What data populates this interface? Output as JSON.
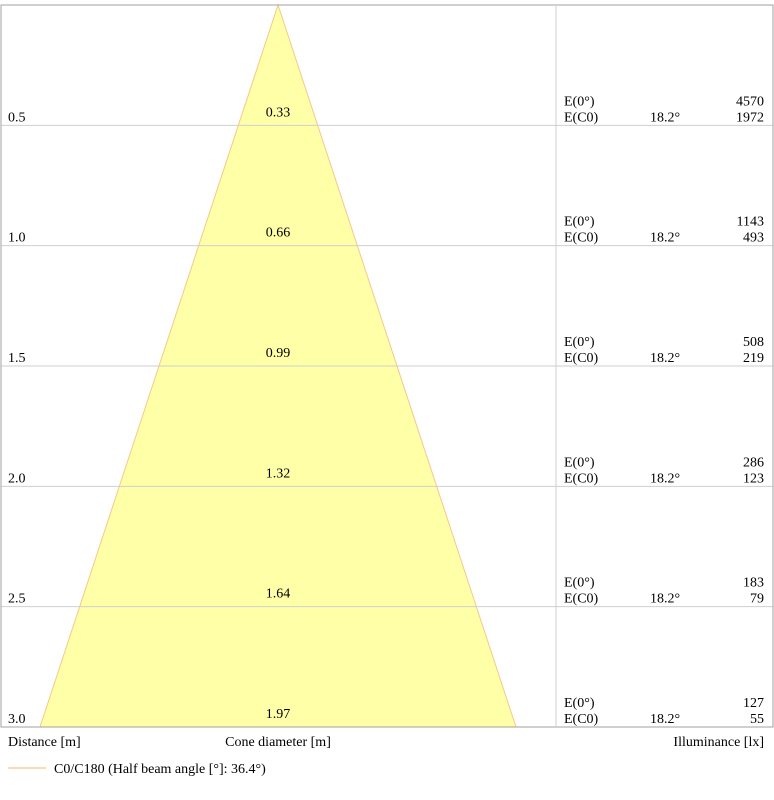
{
  "chart_data": {
    "type": "area",
    "title": "",
    "xlabel": "Distance [m]",
    "center_label": "Cone diameter [m]",
    "right_label": "Illuminance [lx]",
    "legend": {
      "position": "bottom-left",
      "entry": "C0/C180 (Half beam angle [°]: 36.4°)",
      "color": "#f5c88a"
    },
    "distance_range": [
      0,
      3.0
    ],
    "cone_fill_color": "#ffffa8",
    "cone_stroke_color": "#f5c88a",
    "grid": true,
    "rows": [
      {
        "distance": "0.5",
        "diameter": "0.33",
        "e0_label": "E(0°)",
        "e0_value": "4570",
        "ec0_label": "E(C0)",
        "angle": "18.2°",
        "ec0_value": "1972"
      },
      {
        "distance": "1.0",
        "diameter": "0.66",
        "e0_label": "E(0°)",
        "e0_value": "1143",
        "ec0_label": "E(C0)",
        "angle": "18.2°",
        "ec0_value": "493"
      },
      {
        "distance": "1.5",
        "diameter": "0.99",
        "e0_label": "E(0°)",
        "e0_value": "508",
        "ec0_label": "E(C0)",
        "angle": "18.2°",
        "ec0_value": "219"
      },
      {
        "distance": "2.0",
        "diameter": "1.32",
        "e0_label": "E(0°)",
        "e0_value": "286",
        "ec0_label": "E(C0)",
        "angle": "18.2°",
        "ec0_value": "123"
      },
      {
        "distance": "2.5",
        "diameter": "1.64",
        "e0_label": "E(0°)",
        "e0_value": "183",
        "ec0_label": "E(C0)",
        "angle": "18.2°",
        "ec0_value": "79"
      },
      {
        "distance": "3.0",
        "diameter": "1.97",
        "e0_label": "E(0°)",
        "e0_value": "127",
        "ec0_label": "E(C0)",
        "angle": "18.2°",
        "ec0_value": "55"
      }
    ]
  }
}
